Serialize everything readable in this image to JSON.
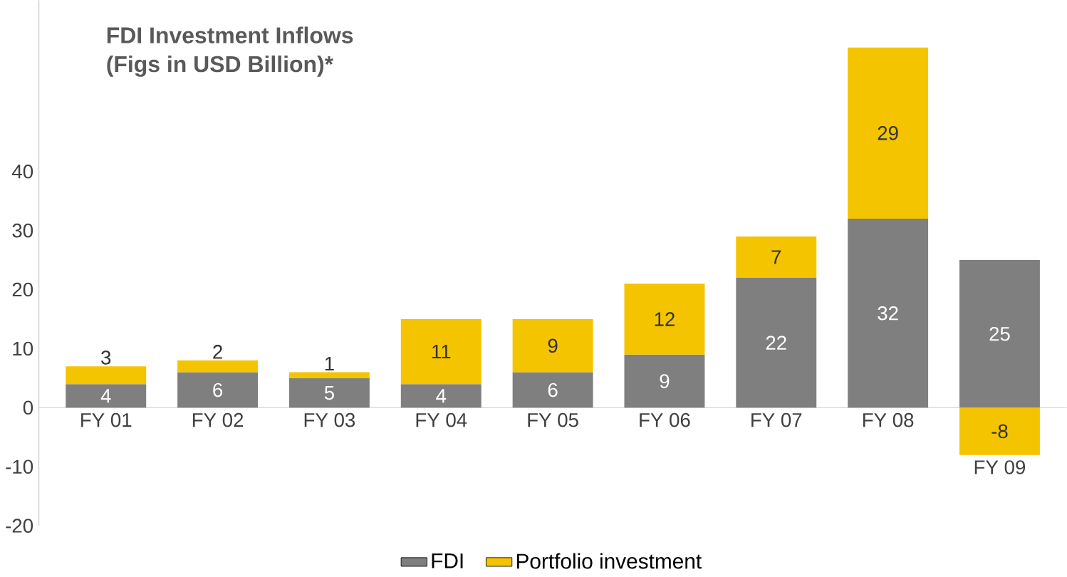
{
  "chart_data": {
    "type": "bar",
    "title": "FDI Investment Inflows",
    "subtitle": "(Figs in USD Billion)*",
    "categories": [
      "FY 01",
      "FY 02",
      "FY 03",
      "FY 04",
      "FY 05",
      "FY 06",
      "FY 07",
      "FY 08",
      "FY 09"
    ],
    "stacked": true,
    "data_labels": true,
    "legend": "bottom",
    "ylim": [
      -20,
      69
    ],
    "yticks": [
      -20,
      -10,
      0,
      10,
      20,
      30,
      40
    ],
    "series": [
      {
        "name": "FDI",
        "color": "#7f7f7f",
        "values": [
          4,
          6,
          5,
          4,
          6,
          9,
          22,
          32,
          25
        ]
      },
      {
        "name": "Portfolio investment",
        "color": "#f5c400",
        "values": [
          3,
          2,
          1,
          11,
          9,
          12,
          7,
          29,
          -8
        ]
      }
    ]
  }
}
